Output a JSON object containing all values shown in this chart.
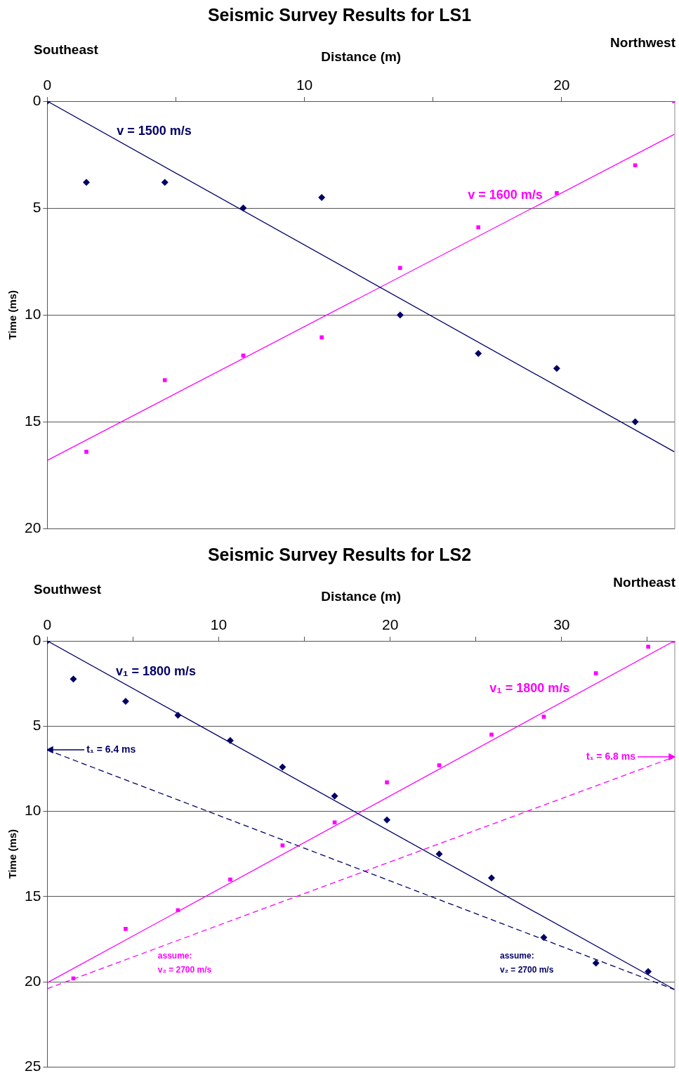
{
  "chart_data": [
    {
      "type": "scatter",
      "title": "Seismic Survey Results for LS1",
      "xlabel": "Distance (m)",
      "ylabel": "Time (ms)",
      "xlim": [
        0,
        24.4
      ],
      "xticks": [
        0,
        {
          "value": 5,
          "label": null
        },
        10,
        {
          "value": 15,
          "label": null
        },
        20
      ],
      "ylim": [
        20,
        0
      ],
      "yticks": [
        0,
        5,
        10,
        15,
        20
      ],
      "grid": "y",
      "annotations": [
        "Southeast",
        "Northwest",
        "v = 1500 m/s",
        "v = 1600 m/s"
      ],
      "series": [
        {
          "type": "scatter",
          "marker": "diamond",
          "color": "#000066",
          "x": [
            0,
            1.52,
            4.57,
            7.62,
            10.67,
            13.72,
            16.76,
            19.81,
            22.86
          ],
          "values": [
            0,
            3.8,
            3.8,
            5.0,
            4.5,
            10.0,
            11.8,
            12.5,
            15.0
          ]
        },
        {
          "type": "scatter",
          "marker": "square",
          "color": "#ff00ff",
          "x": [
            1.52,
            4.57,
            7.62,
            10.67,
            13.72,
            16.76,
            19.81,
            22.86,
            24.38
          ],
          "values": [
            16.4,
            13.05,
            11.9,
            11.05,
            7.8,
            5.9,
            4.3,
            3.0,
            0
          ]
        },
        {
          "type": "line",
          "line_style": "solid",
          "color": "#000066",
          "x": [
            0,
            24.38
          ],
          "values": [
            0,
            16.4
          ]
        },
        {
          "type": "line",
          "line_style": "solid",
          "color": "#ff00ff",
          "x": [
            0,
            24.38
          ],
          "values": [
            16.8,
            1.55
          ]
        }
      ]
    },
    {
      "type": "scatter",
      "title": "Seismic Survey Results for LS2",
      "xlabel": "Distance (m)",
      "ylabel": "Time (ms)",
      "xlim": [
        0,
        36.6
      ],
      "xticks": [
        0,
        {
          "value": 5,
          "label": null
        },
        10,
        {
          "value": 15,
          "label": null
        },
        20,
        {
          "value": 25,
          "label": null
        },
        30,
        {
          "value": 35,
          "label": null
        }
      ],
      "ylim": [
        25,
        0
      ],
      "yticks": [
        0,
        5,
        10,
        15,
        20,
        25
      ],
      "grid": "y",
      "annotations": [
        "Southwest",
        "Northeast",
        "v₁ = 1800 m/s",
        "v₁ = 1800 m/s",
        "t₁ = 6.4 ms",
        "t₁ = 6.8 ms",
        "assume:\nv₂ = 2700 m/s",
        "assume:\nv₂ = 2700 m/s"
      ],
      "series": [
        {
          "type": "scatter",
          "marker": "diamond",
          "color": "#000066",
          "x": [
            0,
            1.52,
            4.57,
            7.62,
            10.67,
            13.72,
            16.76,
            19.81,
            22.86,
            25.91,
            28.96,
            32.0,
            35.05
          ],
          "values": [
            0,
            2.24,
            3.55,
            4.36,
            5.84,
            7.4,
            9.1,
            10.5,
            12.5,
            13.9,
            17.4,
            18.9,
            19.4
          ]
        },
        {
          "type": "scatter",
          "marker": "square",
          "color": "#ff00ff",
          "x": [
            1.52,
            4.57,
            7.62,
            10.67,
            13.72,
            16.76,
            19.81,
            22.86,
            25.91,
            28.96,
            32.0,
            35.05,
            36.58
          ],
          "values": [
            19.8,
            16.9,
            15.8,
            14.0,
            12.0,
            10.65,
            8.3,
            7.3,
            5.5,
            4.45,
            1.9,
            0.34,
            0
          ]
        },
        {
          "type": "line",
          "line_style": "solid",
          "color": "#000066",
          "x": [
            0,
            36.58
          ],
          "values": [
            0,
            20.45
          ]
        },
        {
          "type": "line",
          "line_style": "dashed",
          "color": "#000066",
          "x": [
            0,
            36.58
          ],
          "values": [
            6.4,
            20.45
          ]
        },
        {
          "type": "line",
          "line_style": "solid",
          "color": "#ff00ff",
          "x": [
            0,
            36.58
          ],
          "values": [
            20.05,
            0
          ]
        },
        {
          "type": "line",
          "line_style": "dashed",
          "color": "#ff00ff",
          "x": [
            0,
            36.58
          ],
          "values": [
            20.4,
            6.8
          ]
        }
      ]
    }
  ]
}
